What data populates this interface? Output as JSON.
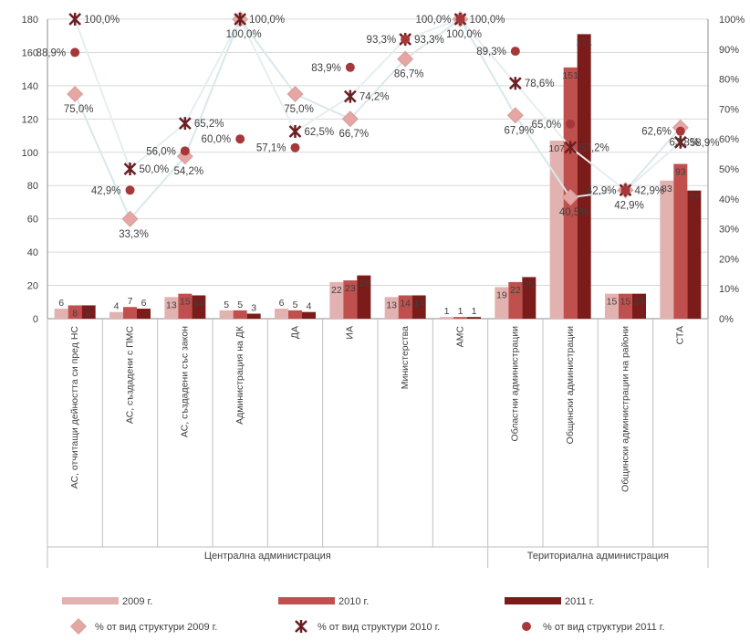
{
  "chart_data": {
    "type": "bar",
    "categories": [
      "АС, отчитащи дейността си пред НС",
      "АС, създадени с ПМС",
      "АС, създадени със закон",
      "Администрация на ДК",
      "ДА",
      "ИА",
      "Министерства",
      "АМС",
      "Областни администрации",
      "Общински администрации",
      "Общински администрации на райони",
      "СТА"
    ],
    "groups": [
      {
        "label": "Централна администрация",
        "from": 0,
        "to": 7
      },
      {
        "label": "Териториална администрация",
        "from": 8,
        "to": 11
      }
    ],
    "y_left": {
      "min": 0,
      "max": 180,
      "ticks": [
        "0",
        "20",
        "40",
        "60",
        "80",
        "100",
        "120",
        "140",
        "160",
        "180"
      ]
    },
    "y_right": {
      "min": 0,
      "max": 100,
      "ticks": [
        "0%",
        "10%",
        "20%",
        "30%",
        "40%",
        "50%",
        "60%",
        "70%",
        "80%",
        "90%",
        "100%"
      ]
    },
    "bar_series": [
      {
        "name": "2009 г.",
        "color": "#e2b2b0",
        "values": [
          6,
          4,
          13,
          5,
          6,
          22,
          13,
          1,
          19,
          107,
          15,
          83
        ],
        "labels": [
          "6",
          "4",
          "13",
          "5",
          "6",
          "22",
          "13",
          "1",
          "19",
          "107",
          "15",
          "83"
        ]
      },
      {
        "name": "2010 г.",
        "color": "#c0504d",
        "values": [
          8,
          7,
          15,
          5,
          5,
          23,
          14,
          1,
          22,
          151,
          15,
          93
        ],
        "labels": [
          "8",
          "7",
          "15",
          "5",
          "5",
          "23",
          "14",
          "1",
          "22",
          "151",
          "15",
          "93"
        ]
      },
      {
        "name": "2011 г.",
        "color": "#7b1c1a",
        "values": [
          8,
          6,
          14,
          3,
          4,
          26,
          14,
          1,
          25,
          171,
          15,
          77
        ],
        "labels": [
          "8",
          "6",
          "14",
          "3",
          "4",
          "26",
          "14",
          "1",
          "25",
          "171",
          "15",
          "77"
        ]
      }
    ],
    "line_series": [
      {
        "name": "% от вид структури 2009 г.",
        "marker": "diamond",
        "color": "#e6a7a4",
        "line_color": "#d8e8ec",
        "values": [
          75.0,
          33.3,
          54.2,
          100.0,
          75.0,
          66.7,
          86.7,
          100.0,
          67.9,
          40.5,
          42.9,
          63.8
        ],
        "labels": [
          "75,0%",
          "33,3%",
          "54,2%",
          "100,0%",
          "75,0%",
          "66,7%",
          "86,7%",
          "100,0%",
          "67,9%",
          "40,5%",
          "42,9%",
          "63,8%"
        ]
      },
      {
        "name": "% от вид структури 2010 г.",
        "marker": "x",
        "color": "#6b1f22",
        "line_color": "#e6eef0",
        "values": [
          100.0,
          50.0,
          65.2,
          100.0,
          62.5,
          74.2,
          93.3,
          100.0,
          78.6,
          57.2,
          42.9,
          58.9
        ],
        "labels": [
          "100,0%",
          "50,0%",
          "65,2%",
          "100,0%",
          "62,5%",
          "74,2%",
          "93,3%",
          "100,0%",
          "78,6%",
          "57,2%",
          "42,9%",
          "58,9%"
        ]
      },
      {
        "name": "% от вид структури 2011 г.",
        "marker": "circle",
        "color": "#a7383a",
        "line_color": null,
        "values": [
          88.9,
          42.9,
          56.0,
          60.0,
          57.1,
          83.9,
          93.3,
          100.0,
          89.3,
          65.0,
          42.9,
          62.6
        ],
        "labels": [
          "88,9%",
          "42,9%",
          "56,0%",
          "60,0%",
          "57,1%",
          "83,9%",
          "93,3%",
          "100,0%",
          "89,3%",
          "65,0%",
          "42,9%",
          "62,6%"
        ]
      }
    ],
    "grid": true,
    "legend_position": "bottom",
    "legend": [
      {
        "text": "2009 г.",
        "type": "bar",
        "color": "#e2b2b0"
      },
      {
        "text": "2010 г.",
        "type": "bar",
        "color": "#c0504d"
      },
      {
        "text": "2011 г.",
        "type": "bar",
        "color": "#7b1c1a"
      },
      {
        "text": "% от вид структури 2009 г.",
        "type": "diamond",
        "color": "#e6a7a4"
      },
      {
        "text": "% от вид структури 2010 г.",
        "type": "x",
        "color": "#6b1f22"
      },
      {
        "text": "% от вид структури 2011 г.",
        "type": "circle",
        "color": "#a7383a"
      }
    ]
  }
}
